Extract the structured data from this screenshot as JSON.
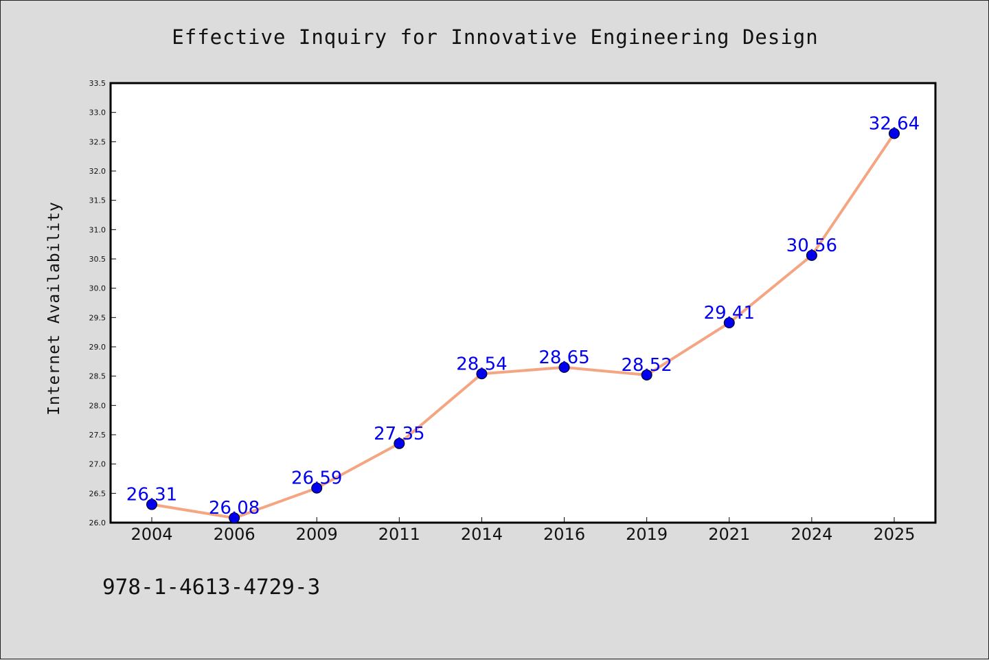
{
  "colors": {
    "background": "#dcdcdc",
    "plot_background": "#ffffff",
    "line": "#f4a582",
    "marker": "#0000ee",
    "data_label": "#0000ee"
  },
  "footer": {
    "isbn": "978-1-4613-4729-3"
  },
  "chart_data": {
    "type": "line",
    "title": "Effective Inquiry for Innovative Engineering Design",
    "xlabel": "",
    "ylabel": "Internet Availability",
    "categories": [
      "2004",
      "2006",
      "2009",
      "2011",
      "2014",
      "2016",
      "2019",
      "2021",
      "2024",
      "2025"
    ],
    "values": [
      26.31,
      26.08,
      26.59,
      27.35,
      28.54,
      28.65,
      28.52,
      29.41,
      30.56,
      32.64
    ],
    "data_labels": [
      "26.31",
      "26.08",
      "26.59",
      "27.35",
      "28.54",
      "28.65",
      "28.52",
      "29.41",
      "30.56",
      "32.64"
    ],
    "ylim": [
      26.0,
      33.5
    ],
    "yticks": [
      "26.0",
      "26.5",
      "27.0",
      "27.5",
      "28.0",
      "28.5",
      "29.0",
      "29.5",
      "30.0",
      "30.5",
      "31.0",
      "31.5",
      "32.0",
      "32.5",
      "33.0",
      "33.5"
    ],
    "grid": false,
    "legend": "none"
  }
}
